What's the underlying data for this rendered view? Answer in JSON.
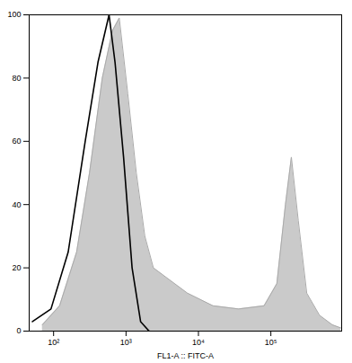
{
  "chart_data": {
    "type": "histogram",
    "x_label": "FL1-A :: FITC-A",
    "log": "x",
    "xlim": [
      46,
      950000
    ],
    "xticks": [
      {
        "value": 100,
        "label": "10²"
      },
      {
        "value": 1000,
        "label": "10³"
      },
      {
        "value": 10000,
        "label": "10⁴"
      },
      {
        "value": 100000,
        "label": "10⁵"
      }
    ],
    "ylim": [
      0,
      100
    ],
    "yticks": [
      0,
      20,
      40,
      60,
      80,
      100
    ],
    "grid": false,
    "series": [
      {
        "type": "area",
        "color": "#c4c4c4",
        "x": [
          70,
          121,
          208,
          313,
          470,
          650,
          807,
          1059,
          1388,
          1820,
          2388,
          3583,
          7047,
          15900,
          35800,
          80700,
          121000,
          159000,
          192000,
          239000,
          313000,
          470000,
          705000,
          925000
        ],
        "values": [
          2,
          8,
          25,
          50,
          80,
          95,
          99,
          75,
          50,
          30,
          20,
          17,
          12,
          8,
          7,
          8,
          15,
          40,
          55,
          35,
          12,
          5,
          2,
          1
        ]
      },
      {
        "type": "line",
        "color": "#000000",
        "x": [
          51,
          92,
          159,
          273,
          410,
          583,
          705,
          925,
          1213,
          1589,
          2084
        ],
        "values": [
          3,
          7,
          25,
          60,
          85,
          100,
          85,
          55,
          20,
          3,
          0
        ]
      }
    ]
  }
}
